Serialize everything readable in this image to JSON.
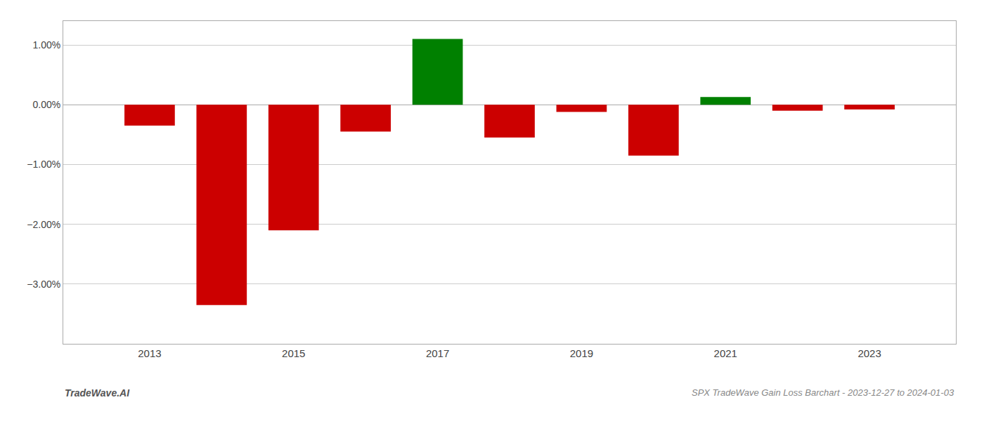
{
  "chart_data": {
    "type": "bar",
    "title": "SPX TradeWave Gain Loss Barchart - 2023-12-27 to 2024-01-03",
    "annotations": [
      "TradeWave.AI"
    ],
    "x": [
      2013,
      2014,
      2015,
      2016,
      2017,
      2018,
      2019,
      2020,
      2021,
      2022,
      2023
    ],
    "values": [
      -0.0035,
      -0.0335,
      -0.021,
      -0.0045,
      0.011,
      -0.0055,
      -0.0012,
      -0.0085,
      0.0013,
      -0.001,
      -0.0008
    ],
    "colors": [
      "#cc0000",
      "#cc0000",
      "#cc0000",
      "#cc0000",
      "#008000",
      "#cc0000",
      "#cc0000",
      "#cc0000",
      "#008000",
      "#cc0000",
      "#cc0000"
    ],
    "xlim": [
      2011.8,
      2024.2
    ],
    "xticks": [
      2013,
      2015,
      2017,
      2019,
      2021,
      2023
    ],
    "ylim": [
      -0.04,
      0.014
    ],
    "yticks": [
      {
        "value": -0.03,
        "label": "−3.00%"
      },
      {
        "value": -0.02,
        "label": "−2.00%"
      },
      {
        "value": -0.01,
        "label": "−1.00%"
      },
      {
        "value": 0,
        "label": "0.00%"
      },
      {
        "value": 0.01,
        "label": "1.00%"
      }
    ],
    "grid": true
  }
}
